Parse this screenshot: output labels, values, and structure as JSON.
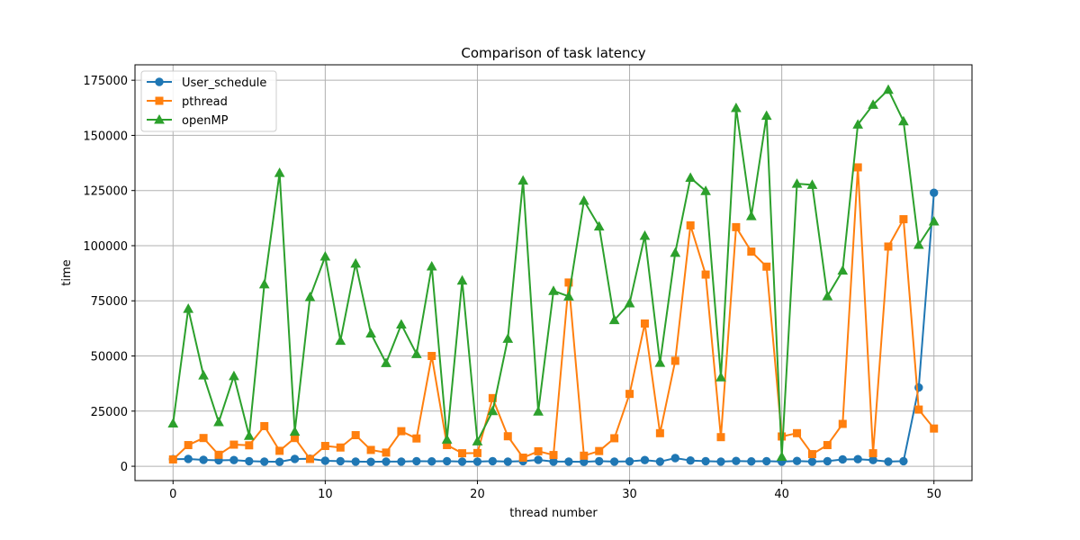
{
  "chart_data": {
    "type": "line",
    "title": "Comparison of task latency",
    "xlabel": "thread number",
    "ylabel": "time",
    "xlim": [
      -2.5,
      52.5
    ],
    "ylim": [
      -6500,
      182000
    ],
    "xticks": [
      0,
      10,
      20,
      30,
      40,
      50
    ],
    "yticks": [
      0,
      25000,
      50000,
      75000,
      100000,
      125000,
      150000,
      175000
    ],
    "grid": true,
    "legend_position": "upper left",
    "x": [
      0,
      1,
      2,
      3,
      4,
      5,
      6,
      7,
      8,
      9,
      10,
      11,
      12,
      13,
      14,
      15,
      16,
      17,
      18,
      19,
      20,
      21,
      22,
      23,
      24,
      25,
      26,
      27,
      28,
      29,
      30,
      31,
      32,
      33,
      34,
      35,
      36,
      37,
      38,
      39,
      40,
      41,
      42,
      43,
      44,
      45,
      46,
      47,
      48,
      49,
      50
    ],
    "series": [
      {
        "name": "User_schedule",
        "color": "#1f77b4",
        "marker": "circle",
        "values": [
          3200,
          3300,
          2900,
          2700,
          2800,
          2300,
          2100,
          2000,
          3300,
          3400,
          2500,
          2300,
          2100,
          2000,
          2100,
          2100,
          2300,
          2200,
          2300,
          2100,
          2100,
          2300,
          2100,
          2300,
          2900,
          2100,
          2100,
          2000,
          2300,
          2100,
          2200,
          2800,
          2100,
          3700,
          2600,
          2300,
          2100,
          2400,
          2200,
          2300,
          2100,
          2400,
          2100,
          2300,
          3100,
          3200,
          2800,
          2100,
          2300,
          35700,
          124000
        ]
      },
      {
        "name": "pthread",
        "color": "#ff7f0e",
        "marker": "square",
        "values": [
          3100,
          9600,
          12800,
          5200,
          9800,
          9500,
          18200,
          7000,
          12800,
          3300,
          9200,
          8500,
          14100,
          7400,
          6200,
          15900,
          12600,
          50000,
          9600,
          5900,
          6000,
          30900,
          13600,
          3900,
          6800,
          5100,
          83300,
          4800,
          6900,
          12700,
          32800,
          64700,
          15000,
          47800,
          109200,
          86900,
          13200,
          108400,
          97300,
          90500,
          13500,
          15000,
          5500,
          9600,
          19200,
          135500,
          5900,
          99600,
          112000,
          25700,
          17100
        ]
      },
      {
        "name": "openMP",
        "color": "#2ca02c",
        "marker": "triangle",
        "values": [
          19400,
          71400,
          41200,
          20000,
          40900,
          13800,
          82500,
          133000,
          15700,
          76700,
          95100,
          56900,
          91900,
          60200,
          46800,
          64300,
          50900,
          90600,
          12100,
          84200,
          11300,
          25000,
          57800,
          129500,
          24800,
          79500,
          77000,
          120400,
          108700,
          66300,
          73900,
          104500,
          46900,
          96800,
          130800,
          124800,
          40300,
          162400,
          113400,
          158900,
          4300,
          128100,
          127600,
          77100,
          88700,
          154900,
          163900,
          170700,
          156400,
          100400,
          111000
        ]
      }
    ]
  }
}
